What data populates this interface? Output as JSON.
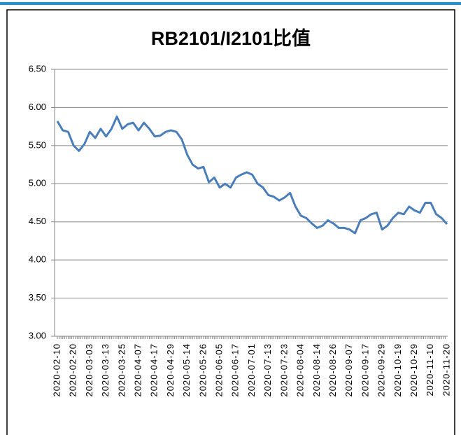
{
  "chart_data": {
    "type": "line",
    "title": "RB2101/I2101比值",
    "categories": [
      "2020-02-10",
      null,
      null,
      "2020-02-20",
      null,
      null,
      "2020-03-03",
      null,
      null,
      "2020-03-13",
      null,
      null,
      "2020-03-25",
      null,
      null,
      "2020-04-07",
      null,
      null,
      "2020-04-17",
      null,
      null,
      "2020-04-29",
      null,
      null,
      "2020-05-14",
      null,
      null,
      "2020-05-26",
      null,
      null,
      "2020-06-05",
      null,
      null,
      "2020-06-17",
      null,
      null,
      "2020-07-01",
      null,
      null,
      "2020-07-13",
      null,
      null,
      "2020-07-23",
      null,
      null,
      "2020-08-04",
      null,
      null,
      "2020-08-14",
      null,
      null,
      "2020-08-26",
      null,
      null,
      "2020-09-07",
      null,
      null,
      "2020-09-17",
      null,
      null,
      "2020-09-29",
      null,
      null,
      "2020-10-19",
      null,
      null,
      "2020-10-29",
      null,
      null,
      "2020-11-10",
      null,
      null,
      "2020-11-20"
    ],
    "series": [
      {
        "name": "RB2101/I2101",
        "color": "#4a7ebb",
        "values": [
          5.82,
          5.7,
          5.68,
          5.5,
          5.43,
          5.52,
          5.68,
          5.6,
          5.72,
          5.62,
          5.72,
          5.88,
          5.72,
          5.78,
          5.8,
          5.7,
          5.8,
          5.72,
          5.62,
          5.63,
          5.68,
          5.7,
          5.68,
          5.58,
          5.38,
          5.25,
          5.2,
          5.22,
          5.02,
          5.08,
          4.95,
          5.0,
          4.95,
          5.08,
          5.12,
          5.15,
          5.12,
          5.0,
          4.95,
          4.85,
          4.83,
          4.78,
          4.82,
          4.88,
          4.7,
          4.58,
          4.55,
          4.48,
          4.42,
          4.45,
          4.52,
          4.48,
          4.42,
          4.42,
          4.4,
          4.35,
          4.52,
          4.55,
          4.6,
          4.62,
          4.4,
          4.45,
          4.55,
          4.62,
          4.6,
          4.7,
          4.65,
          4.62,
          4.75,
          4.75,
          4.6,
          4.55,
          4.47
        ]
      }
    ],
    "ylim": [
      3,
      6.5
    ],
    "yticks": [
      {
        "value": 3,
        "label": "3.00"
      },
      {
        "value": 3.5,
        "label": "3.50"
      },
      {
        "value": 4,
        "label": "4.00"
      },
      {
        "value": 4.5,
        "label": "4.50"
      },
      {
        "value": 5,
        "label": "5.00"
      },
      {
        "value": 5.5,
        "label": "5.50"
      },
      {
        "value": 6,
        "label": "6.00"
      },
      {
        "value": 6.5,
        "label": "6.50"
      }
    ],
    "grid": true
  }
}
